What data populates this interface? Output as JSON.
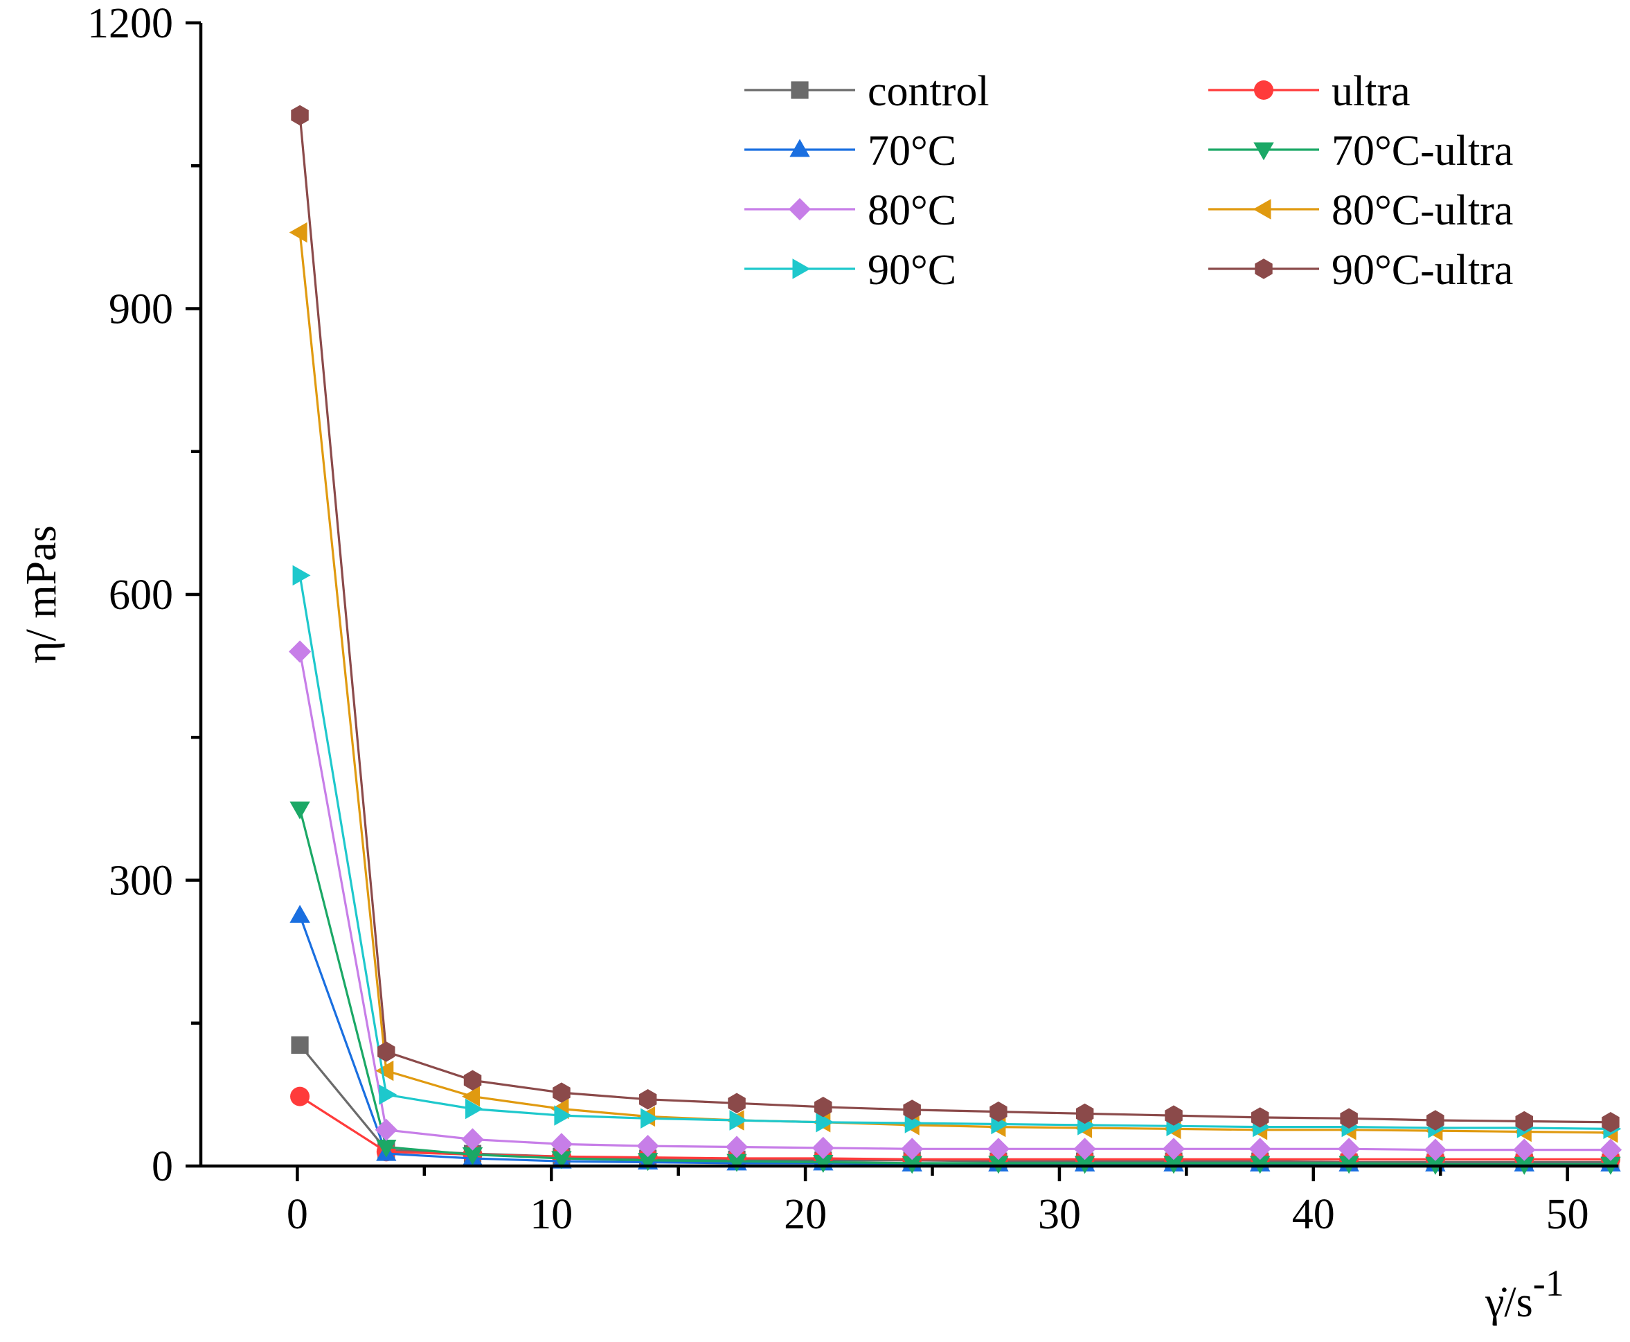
{
  "chart_data": {
    "type": "line",
    "title": "",
    "xlabel": "γ̇/s",
    "xlabel_superscript": "-1",
    "ylabel": "η/ mPas",
    "xlim": [
      -3.8,
      52
    ],
    "ylim": [
      0,
      1200
    ],
    "x_major_ticks": [
      0,
      10,
      20,
      30,
      40,
      50
    ],
    "x_minor_ticks": [
      5,
      15,
      25,
      35,
      45
    ],
    "y_major_ticks": [
      0,
      300,
      600,
      900,
      1200
    ],
    "y_minor_ticks": [
      150,
      450,
      750,
      1050
    ],
    "x_tick_labels": [
      "0",
      "10",
      "20",
      "30",
      "40",
      "50"
    ],
    "y_tick_labels": [
      "0",
      "300",
      "600",
      "900",
      "1200"
    ],
    "grid": false,
    "legend_position": "top-right",
    "x": [
      0.1,
      3.5,
      6.9,
      10.4,
      13.8,
      17.3,
      20.7,
      24.2,
      27.6,
      31.0,
      34.5,
      37.9,
      41.4,
      44.8,
      48.3,
      51.7
    ],
    "series": [
      {
        "name": "control",
        "color": "#6b6b6b",
        "marker": "square",
        "values": [
          127,
          17,
          13,
          10,
          8,
          7,
          6,
          6,
          5,
          5,
          5,
          5,
          4,
          4,
          4,
          4
        ]
      },
      {
        "name": "ultra",
        "color": "#ff3b3b",
        "marker": "circle",
        "values": [
          73,
          15,
          12,
          10,
          9,
          8,
          8,
          7,
          7,
          7,
          7,
          7,
          7,
          7,
          7,
          7
        ]
      },
      {
        "name": "70°C",
        "color": "#1a6fe0",
        "marker": "triangle-up",
        "values": [
          263,
          13,
          8,
          5,
          4,
          3,
          3,
          2,
          2,
          2,
          2,
          2,
          2,
          2,
          2,
          2
        ]
      },
      {
        "name": "70°C-ultra",
        "color": "#1ba866",
        "marker": "triangle-down",
        "values": [
          375,
          20,
          12,
          8,
          6,
          5,
          4,
          3,
          3,
          3,
          3,
          3,
          3,
          2,
          2,
          2
        ]
      },
      {
        "name": "80°C",
        "color": "#c77ee8",
        "marker": "diamond",
        "values": [
          540,
          38,
          28,
          23,
          21,
          20,
          19,
          18,
          18,
          18,
          18,
          18,
          18,
          17,
          17,
          17
        ]
      },
      {
        "name": "80°C-ultra",
        "color": "#e09a10",
        "marker": "triangle-left",
        "values": [
          980,
          100,
          73,
          60,
          52,
          48,
          46,
          43,
          41,
          40,
          39,
          38,
          38,
          37,
          36,
          35
        ]
      },
      {
        "name": "90°C",
        "color": "#1ec8cc",
        "marker": "triangle-right",
        "values": [
          620,
          75,
          60,
          53,
          50,
          48,
          46,
          45,
          44,
          43,
          42,
          41,
          41,
          40,
          40,
          39
        ]
      },
      {
        "name": "90°C-ultra",
        "color": "#8b4a4a",
        "marker": "hexagon",
        "values": [
          1103,
          120,
          90,
          77,
          70,
          66,
          62,
          59,
          57,
          55,
          53,
          51,
          50,
          48,
          47,
          46
        ]
      }
    ]
  }
}
